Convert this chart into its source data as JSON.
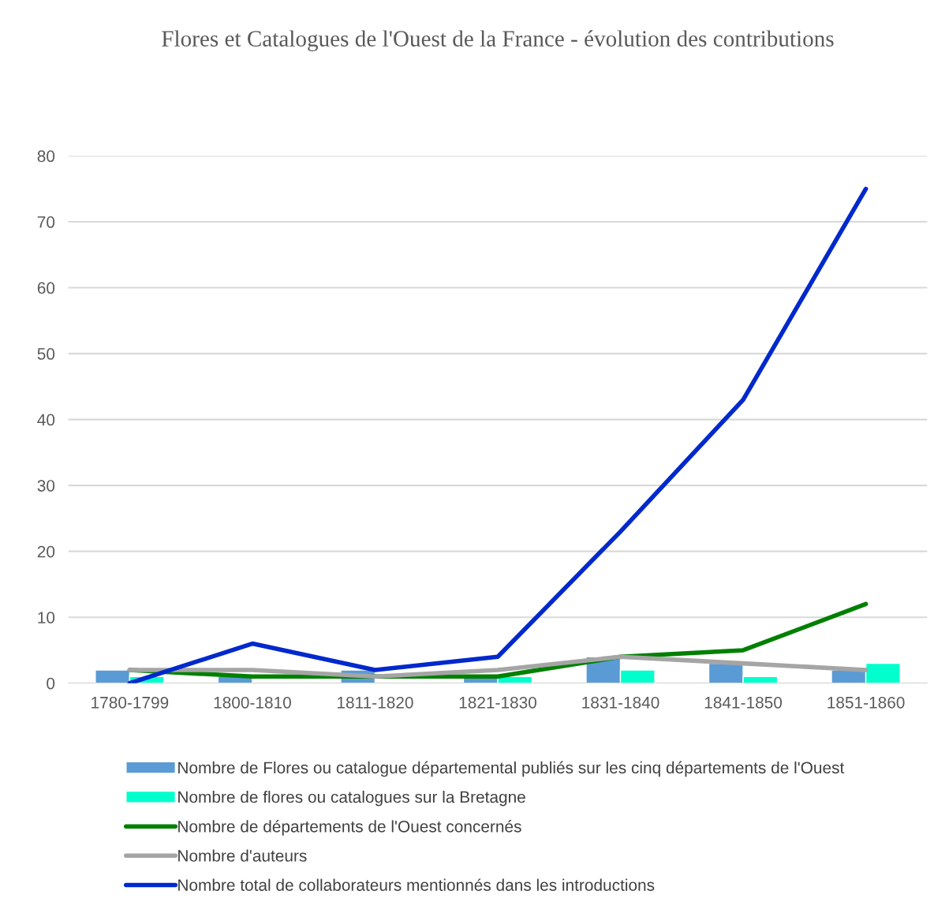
{
  "chart_data": {
    "type": "bar",
    "title": "Flores et Catalogues de l'Ouest de la France - évolution des contributions",
    "categories": [
      "1780-1799",
      "1800-1810",
      "1811-1820",
      "1821-1830",
      "1831-1840",
      "1841-1850",
      "1851-1860"
    ],
    "series": [
      {
        "name": "Nombre de Flores ou catalogue départemental publiés sur les cinq départements de l'Ouest",
        "color": "#5b9bd5",
        "values": [
          2,
          1,
          2,
          1,
          4,
          3,
          2
        ]
      },
      {
        "name": "Nombre de flores ou catalogues sur la Bretagne",
        "color": "#00ffcc",
        "values": [
          1,
          null,
          null,
          1,
          2,
          1,
          3
        ]
      },
      {
        "name": "Nombre de départements de l'Ouest concernés",
        "type": "line",
        "color": "#008000",
        "values": [
          2,
          1,
          1,
          1,
          4,
          5,
          12
        ]
      },
      {
        "name": "Nombre d'auteurs",
        "type": "line",
        "color": "#a5a5a5",
        "values": [
          2,
          2,
          1,
          2,
          4,
          3,
          2
        ]
      },
      {
        "name": "Nombre total de collaborateurs mentionnés dans les introductions",
        "type": "line",
        "color": "#0029cc",
        "values": [
          0,
          6,
          2,
          4,
          23,
          43,
          75
        ]
      }
    ],
    "ylim": [
      0,
      80
    ],
    "yticks": [
      0,
      10,
      20,
      30,
      40,
      50,
      60,
      70,
      80
    ],
    "grid": "y",
    "legend": "bottom"
  }
}
